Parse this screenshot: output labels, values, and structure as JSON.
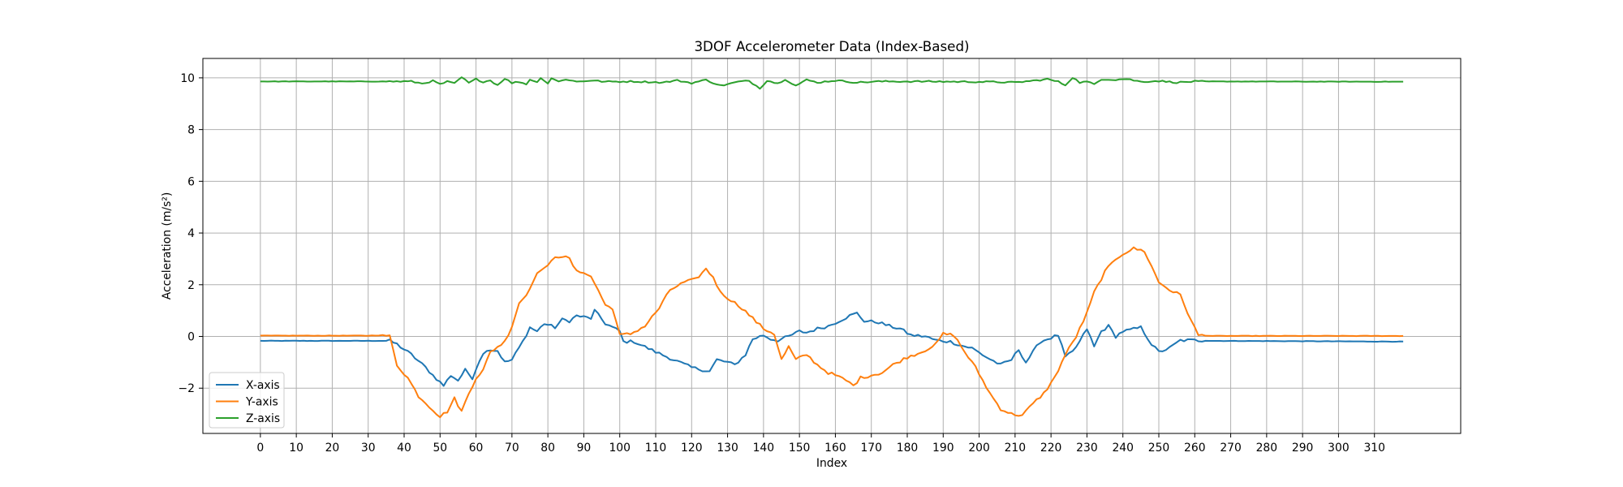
{
  "chart_data": {
    "type": "line",
    "title": "3DOF Accelerometer Data (Index-Based)",
    "xlabel": "Index",
    "ylabel": "Acceleration (m/s²)",
    "xlim": [
      -16,
      334
    ],
    "ylim": [
      -3.75,
      10.75
    ],
    "xticks": [
      0,
      10,
      20,
      30,
      40,
      50,
      60,
      70,
      80,
      90,
      100,
      110,
      120,
      130,
      140,
      150,
      160,
      170,
      180,
      190,
      200,
      210,
      220,
      230,
      240,
      250,
      260,
      270,
      280,
      290,
      300,
      310
    ],
    "yticks": [
      -2,
      0,
      2,
      4,
      6,
      8,
      10
    ],
    "ytick_labels": [
      "−2",
      "0",
      "2",
      "4",
      "6",
      "8",
      "10"
    ],
    "grid": true,
    "legend_position": "lower-left",
    "series": [
      {
        "name": "X-axis",
        "color": "#1f77b4",
        "keypoints": [
          [
            0,
            -0.17
          ],
          [
            30,
            -0.17
          ],
          [
            36,
            -0.17
          ],
          [
            38,
            -0.3
          ],
          [
            42,
            -0.7
          ],
          [
            46,
            -1.2
          ],
          [
            48,
            -1.5
          ],
          [
            51,
            -1.9
          ],
          [
            53,
            -1.5
          ],
          [
            55,
            -1.7
          ],
          [
            57,
            -1.3
          ],
          [
            59,
            -1.6
          ],
          [
            61,
            -0.9
          ],
          [
            63,
            -0.5
          ],
          [
            66,
            -0.55
          ],
          [
            68,
            -1.0
          ],
          [
            70,
            -0.9
          ],
          [
            73,
            -0.2
          ],
          [
            75,
            0.35
          ],
          [
            77,
            0.2
          ],
          [
            79,
            0.5
          ],
          [
            82,
            0.35
          ],
          [
            84,
            0.65
          ],
          [
            86,
            0.6
          ],
          [
            88,
            0.8
          ],
          [
            90,
            0.75
          ],
          [
            92,
            0.7
          ],
          [
            93,
            1.0
          ],
          [
            96,
            0.5
          ],
          [
            98,
            0.35
          ],
          [
            100,
            0.2
          ],
          [
            101,
            -0.2
          ],
          [
            104,
            -0.2
          ],
          [
            110,
            -0.6
          ],
          [
            115,
            -0.9
          ],
          [
            120,
            -1.2
          ],
          [
            125,
            -1.35
          ],
          [
            127,
            -0.9
          ],
          [
            130,
            -1.0
          ],
          [
            132,
            -1.1
          ],
          [
            135,
            -0.7
          ],
          [
            137,
            -0.1
          ],
          [
            140,
            0.05
          ],
          [
            142,
            -0.1
          ],
          [
            144,
            -0.15
          ],
          [
            147,
            0.0
          ],
          [
            150,
            0.2
          ],
          [
            152,
            0.15
          ],
          [
            155,
            0.3
          ],
          [
            158,
            0.4
          ],
          [
            161,
            0.6
          ],
          [
            164,
            0.8
          ],
          [
            166,
            0.9
          ],
          [
            168,
            0.6
          ],
          [
            172,
            0.55
          ],
          [
            175,
            0.4
          ],
          [
            178,
            0.3
          ],
          [
            181,
            0.05
          ],
          [
            185,
            0.0
          ],
          [
            188,
            -0.15
          ],
          [
            192,
            -0.2
          ],
          [
            195,
            -0.35
          ],
          [
            198,
            -0.45
          ],
          [
            202,
            -0.8
          ],
          [
            206,
            -1.1
          ],
          [
            209,
            -0.9
          ],
          [
            211,
            -0.5
          ],
          [
            213,
            -1.0
          ],
          [
            215,
            -0.6
          ],
          [
            217,
            -0.2
          ],
          [
            219,
            -0.1
          ],
          [
            222,
            0.05
          ],
          [
            224,
            -0.8
          ],
          [
            226,
            -0.6
          ],
          [
            228,
            -0.2
          ],
          [
            230,
            0.3
          ],
          [
            232,
            -0.4
          ],
          [
            234,
            0.2
          ],
          [
            236,
            0.4
          ],
          [
            238,
            0.0
          ],
          [
            240,
            0.2
          ],
          [
            242,
            0.25
          ],
          [
            245,
            0.35
          ],
          [
            248,
            -0.3
          ],
          [
            250,
            -0.6
          ],
          [
            253,
            -0.45
          ],
          [
            256,
            -0.15
          ],
          [
            260,
            -0.15
          ],
          [
            265,
            -0.17
          ],
          [
            318,
            -0.2
          ]
        ]
      },
      {
        "name": "Y-axis",
        "color": "#ff7f0e",
        "keypoints": [
          [
            0,
            0.03
          ],
          [
            30,
            0.03
          ],
          [
            34,
            0.05
          ],
          [
            36,
            0.0
          ],
          [
            38,
            -1.1
          ],
          [
            41,
            -1.6
          ],
          [
            44,
            -2.3
          ],
          [
            47,
            -2.7
          ],
          [
            50,
            -3.1
          ],
          [
            52,
            -2.9
          ],
          [
            54,
            -2.4
          ],
          [
            56,
            -2.9
          ],
          [
            58,
            -2.2
          ],
          [
            60,
            -1.6
          ],
          [
            62,
            -1.3
          ],
          [
            64,
            -0.6
          ],
          [
            66,
            -0.4
          ],
          [
            68,
            -0.2
          ],
          [
            70,
            0.4
          ],
          [
            72,
            1.3
          ],
          [
            74,
            1.6
          ],
          [
            76,
            2.2
          ],
          [
            78,
            2.6
          ],
          [
            80,
            2.7
          ],
          [
            82,
            3.1
          ],
          [
            84,
            3.1
          ],
          [
            86,
            3.0
          ],
          [
            88,
            2.5
          ],
          [
            90,
            2.5
          ],
          [
            92,
            2.3
          ],
          [
            94,
            1.8
          ],
          [
            96,
            1.2
          ],
          [
            98,
            1.1
          ],
          [
            100,
            0.05
          ],
          [
            103,
            0.1
          ],
          [
            107,
            0.4
          ],
          [
            111,
            1.1
          ],
          [
            114,
            1.8
          ],
          [
            118,
            2.1
          ],
          [
            121,
            2.2
          ],
          [
            124,
            2.6
          ],
          [
            126,
            2.3
          ],
          [
            128,
            1.7
          ],
          [
            131,
            1.4
          ],
          [
            134,
            1.1
          ],
          [
            137,
            0.7
          ],
          [
            140,
            0.3
          ],
          [
            143,
            0.1
          ],
          [
            145,
            -0.9
          ],
          [
            147,
            -0.4
          ],
          [
            149,
            -0.9
          ],
          [
            152,
            -0.7
          ],
          [
            155,
            -1.1
          ],
          [
            158,
            -1.4
          ],
          [
            160,
            -1.5
          ],
          [
            163,
            -1.7
          ],
          [
            165,
            -1.9
          ],
          [
            167,
            -1.6
          ],
          [
            170,
            -1.5
          ],
          [
            173,
            -1.4
          ],
          [
            176,
            -1.1
          ],
          [
            180,
            -0.8
          ],
          [
            184,
            -0.6
          ],
          [
            188,
            -0.3
          ],
          [
            190,
            0.1
          ],
          [
            193,
            0.05
          ],
          [
            196,
            -0.6
          ],
          [
            199,
            -1.2
          ],
          [
            203,
            -2.2
          ],
          [
            206,
            -2.8
          ],
          [
            209,
            -3.0
          ],
          [
            212,
            -3.05
          ],
          [
            215,
            -2.6
          ],
          [
            218,
            -2.2
          ],
          [
            221,
            -1.6
          ],
          [
            224,
            -0.7
          ],
          [
            227,
            0.0
          ],
          [
            230,
            0.9
          ],
          [
            232,
            1.7
          ],
          [
            235,
            2.5
          ],
          [
            238,
            3.0
          ],
          [
            240,
            3.2
          ],
          [
            243,
            3.4
          ],
          [
            246,
            3.3
          ],
          [
            248,
            2.7
          ],
          [
            250,
            2.1
          ],
          [
            253,
            1.8
          ],
          [
            256,
            1.6
          ],
          [
            259,
            0.6
          ],
          [
            261,
            0.05
          ],
          [
            265,
            0.02
          ],
          [
            318,
            0.02
          ]
        ]
      },
      {
        "name": "Z-axis",
        "color": "#2ca02c",
        "keypoints": [
          [
            0,
            9.86
          ],
          [
            35,
            9.86
          ],
          [
            42,
            9.86
          ],
          [
            45,
            9.78
          ],
          [
            48,
            9.88
          ],
          [
            50,
            9.75
          ],
          [
            52,
            9.85
          ],
          [
            54,
            9.78
          ],
          [
            56,
            10.02
          ],
          [
            58,
            9.8
          ],
          [
            60,
            9.95
          ],
          [
            62,
            9.85
          ],
          [
            64,
            9.9
          ],
          [
            66,
            9.72
          ],
          [
            68,
            9.98
          ],
          [
            70,
            9.8
          ],
          [
            72,
            9.85
          ],
          [
            74,
            9.75
          ],
          [
            75,
            9.95
          ],
          [
            77,
            9.82
          ],
          [
            78,
            10.02
          ],
          [
            80,
            9.78
          ],
          [
            81,
            10.0
          ],
          [
            83,
            9.85
          ],
          [
            85,
            9.95
          ],
          [
            88,
            9.85
          ],
          [
            92,
            9.9
          ],
          [
            96,
            9.85
          ],
          [
            104,
            9.86
          ],
          [
            112,
            9.82
          ],
          [
            116,
            9.9
          ],
          [
            120,
            9.8
          ],
          [
            124,
            9.92
          ],
          [
            128,
            9.7
          ],
          [
            130,
            9.75
          ],
          [
            133,
            9.85
          ],
          [
            136,
            9.88
          ],
          [
            139,
            9.6
          ],
          [
            141,
            9.9
          ],
          [
            144,
            9.78
          ],
          [
            146,
            9.95
          ],
          [
            149,
            9.7
          ],
          [
            152,
            9.92
          ],
          [
            155,
            9.82
          ],
          [
            160,
            9.9
          ],
          [
            166,
            9.82
          ],
          [
            172,
            9.86
          ],
          [
            185,
            9.86
          ],
          [
            195,
            9.85
          ],
          [
            205,
            9.84
          ],
          [
            210,
            9.82
          ],
          [
            216,
            9.9
          ],
          [
            219,
            9.95
          ],
          [
            222,
            9.85
          ],
          [
            224,
            9.72
          ],
          [
            226,
            10.02
          ],
          [
            228,
            9.82
          ],
          [
            230,
            9.85
          ],
          [
            232,
            9.75
          ],
          [
            234,
            9.95
          ],
          [
            238,
            9.93
          ],
          [
            241,
            9.96
          ],
          [
            245,
            9.85
          ],
          [
            250,
            9.88
          ],
          [
            255,
            9.82
          ],
          [
            260,
            9.86
          ],
          [
            318,
            9.85
          ]
        ]
      }
    ]
  }
}
